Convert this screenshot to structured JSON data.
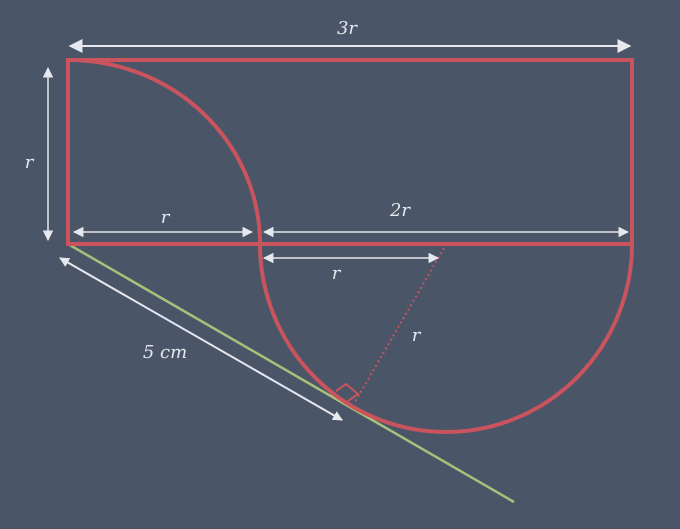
{
  "colors": {
    "background": "#4a5568",
    "shape": "#c9545e",
    "tangent": "#a8c07a",
    "dimension": "#e6e8ee",
    "radius_dotted": "#c9545e"
  },
  "labels": {
    "top_width": "3r",
    "left_height": "r",
    "bottom_left_width": "r",
    "bottom_right_width": "2r",
    "semicircle_radius_horizontal": "r",
    "semicircle_radius_slant": "r",
    "tangent_length": "5 cm"
  }
}
